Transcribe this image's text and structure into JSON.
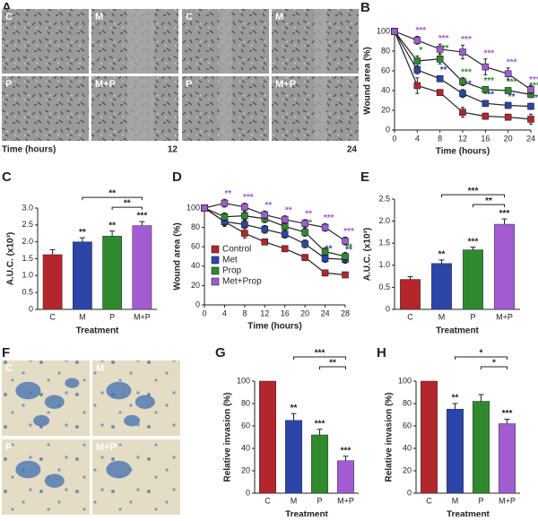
{
  "figure_a": {
    "panel": "A",
    "labels": [
      "C",
      "M",
      "P",
      "M+P",
      "C",
      "M",
      "P",
      "M+P"
    ],
    "time_label": "Time (hours)",
    "times": [
      12,
      24
    ]
  },
  "figure_f": {
    "panel": "F",
    "labels": [
      "C",
      "M",
      "P",
      "M+P"
    ]
  },
  "chart_data": [
    {
      "panel": "B",
      "type": "line",
      "xlabel": "Time (hours)",
      "ylabel": "Wound area (%)",
      "x": [
        0,
        4,
        8,
        12,
        16,
        20,
        24
      ],
      "xlim": [
        0,
        24
      ],
      "xticks": [
        0,
        4,
        8,
        12,
        16,
        20,
        24
      ],
      "ylim": [
        0,
        100
      ],
      "yticks": [
        0,
        20,
        40,
        60,
        80,
        100
      ],
      "series": [
        {
          "color": "#b3262b",
          "values": [
            100,
            45,
            38,
            18,
            14,
            13,
            11
          ],
          "errors": [
            0,
            8,
            3,
            5,
            3,
            3,
            5
          ],
          "labels": [
            null,
            null,
            null,
            null,
            null,
            null,
            null
          ]
        },
        {
          "color": "#2b46a8",
          "values": [
            100,
            61,
            52,
            37,
            27,
            25,
            24
          ],
          "errors": [
            0,
            4,
            3,
            4,
            3,
            3,
            3
          ],
          "labels": [
            null,
            null,
            "**",
            "***",
            "***",
            "**",
            "**"
          ]
        },
        {
          "color": "#2f8a2f",
          "values": [
            100,
            70,
            72,
            49,
            41,
            40,
            36
          ],
          "errors": [
            0,
            5,
            5,
            4,
            3,
            3,
            3
          ],
          "labels": [
            null,
            "*",
            "***",
            "***",
            "***",
            "***",
            "***"
          ]
        },
        {
          "color": "#a25bd1",
          "values": [
            100,
            91,
            82,
            79,
            64,
            57,
            41
          ],
          "errors": [
            0,
            4,
            5,
            7,
            8,
            6,
            4
          ],
          "labels": [
            null,
            "***",
            "***",
            "***",
            "***",
            "***",
            "***"
          ]
        }
      ]
    },
    {
      "panel": "C",
      "type": "bar",
      "xlabel": "Treatment",
      "ylabel": "A.U.C. (x10³)",
      "categories": [
        "C",
        "M",
        "P",
        "M+P"
      ],
      "values": [
        1.62,
        2.0,
        2.17,
        2.48
      ],
      "errors": [
        0.15,
        0.12,
        0.15,
        0.12
      ],
      "colors": [
        "#b3262b",
        "#2b46a8",
        "#2f8a2f",
        "#a25bd1"
      ],
      "ylim": [
        0,
        3
      ],
      "yticks": [
        0,
        0.5,
        {
          "value": 1,
          "label": "1.0"
        },
        1.5,
        {
          "value": 2,
          "label": "2.0"
        },
        2.5,
        {
          "value": 3,
          "label": "3.0"
        }
      ],
      "annotations": [
        null,
        "**",
        "**",
        "***"
      ],
      "comparisons": [
        {
          "between": [
            "M",
            "M+P"
          ],
          "label": "**"
        },
        {
          "between": [
            "P",
            "M+P"
          ],
          "label": "**"
        }
      ]
    },
    {
      "panel": "D",
      "type": "line",
      "xlabel": "Time (hours)",
      "ylabel": "Wound area (%)",
      "legend": "center left",
      "x": [
        0,
        4,
        8,
        12,
        16,
        20,
        24,
        28
      ],
      "xlim": [
        0,
        28
      ],
      "xticks": [
        0,
        4,
        8,
        12,
        16,
        20,
        24,
        28
      ],
      "ylim": [
        0,
        100
      ],
      "yticks": [
        0,
        20,
        40,
        60,
        80,
        100
      ],
      "series": [
        {
          "name": "Control",
          "color": "#b3262b",
          "values": [
            100,
            86,
            74,
            65,
            58,
            49,
            33,
            31
          ],
          "errors": [
            0,
            5,
            5,
            3,
            3,
            3,
            3,
            2
          ],
          "labels": [
            null,
            null,
            null,
            null,
            null,
            null,
            null,
            null
          ]
        },
        {
          "name": "Met",
          "color": "#2b46a8",
          "values": [
            100,
            86,
            83,
            78,
            73,
            63,
            48,
            47
          ],
          "errors": [
            0,
            4,
            4,
            4,
            4,
            4,
            4,
            4
          ],
          "labels": [
            null,
            null,
            null,
            null,
            null,
            null,
            "**",
            "**"
          ]
        },
        {
          "name": "Prop",
          "color": "#2f8a2f",
          "values": [
            100,
            91,
            92,
            89,
            81,
            75,
            55,
            50
          ],
          "errors": [
            0,
            4,
            4,
            4,
            4,
            4,
            4,
            4
          ],
          "labels": [
            null,
            null,
            null,
            null,
            null,
            "**",
            null,
            "**"
          ]
        },
        {
          "name": "Met+Prop",
          "color": "#a25bd1",
          "values": [
            100,
            105,
            101,
            93,
            88,
            84,
            80,
            66
          ],
          "errors": [
            0,
            4,
            4,
            4,
            4,
            4,
            4,
            4
          ],
          "labels": [
            null,
            "**",
            "***",
            "**",
            "**",
            "**",
            "***",
            "***"
          ]
        }
      ]
    },
    {
      "panel": "E",
      "type": "bar",
      "xlabel": "Treatment",
      "ylabel": "A.U.C. (x10³)",
      "categories": [
        "C",
        "M",
        "P",
        "M+P"
      ],
      "values": [
        0.68,
        1.04,
        1.35,
        1.93
      ],
      "errors": [
        0.06,
        0.08,
        0.06,
        0.12
      ],
      "colors": [
        "#b3262b",
        "#2b46a8",
        "#2f8a2f",
        "#a25bd1"
      ],
      "ylim": [
        0,
        2.5
      ],
      "yticks": [
        0,
        0.5,
        {
          "value": 1,
          "label": "1.0"
        },
        1.5,
        {
          "value": 2,
          "label": "2.0"
        },
        2.5
      ],
      "annotations": [
        null,
        "**",
        "***",
        "***"
      ],
      "comparisons": [
        {
          "between": [
            "M",
            "M+P"
          ],
          "label": "***"
        },
        {
          "between": [
            "P",
            "M+P"
          ],
          "label": "**"
        }
      ]
    },
    {
      "panel": "G",
      "type": "bar",
      "xlabel": "Treatment",
      "ylabel": "Relative invasion (%)",
      "categories": [
        "C",
        "M",
        "P",
        "M+P"
      ],
      "values": [
        100,
        65,
        52,
        29
      ],
      "errors": [
        0,
        6,
        5,
        4
      ],
      "colors": [
        "#b3262b",
        "#2b46a8",
        "#2f8a2f",
        "#a25bd1"
      ],
      "ylim": [
        0,
        100
      ],
      "yticks": [
        0,
        20,
        40,
        60,
        80,
        100
      ],
      "annotations": [
        null,
        "**",
        "***",
        "***"
      ],
      "comparisons": [
        {
          "between": [
            "M",
            "M+P"
          ],
          "label": "***"
        },
        {
          "between": [
            "P",
            "M+P"
          ],
          "label": "**"
        }
      ]
    },
    {
      "panel": "H",
      "type": "bar",
      "xlabel": "Treatment",
      "ylabel": "Relative invasion (%)",
      "categories": [
        "C",
        "M",
        "P",
        "M+P"
      ],
      "values": [
        100,
        75,
        82,
        62
      ],
      "errors": [
        0,
        5,
        6,
        4
      ],
      "colors": [
        "#b3262b",
        "#2b46a8",
        "#2f8a2f",
        "#a25bd1"
      ],
      "ylim": [
        0,
        100
      ],
      "yticks": [
        0,
        20,
        40,
        60,
        80,
        100
      ],
      "annotations": [
        null,
        "**",
        null,
        "***"
      ],
      "comparisons": [
        {
          "between": [
            "M",
            "M+P"
          ],
          "label": "*"
        },
        {
          "between": [
            "P",
            "M+P"
          ],
          "label": "*"
        }
      ]
    }
  ]
}
